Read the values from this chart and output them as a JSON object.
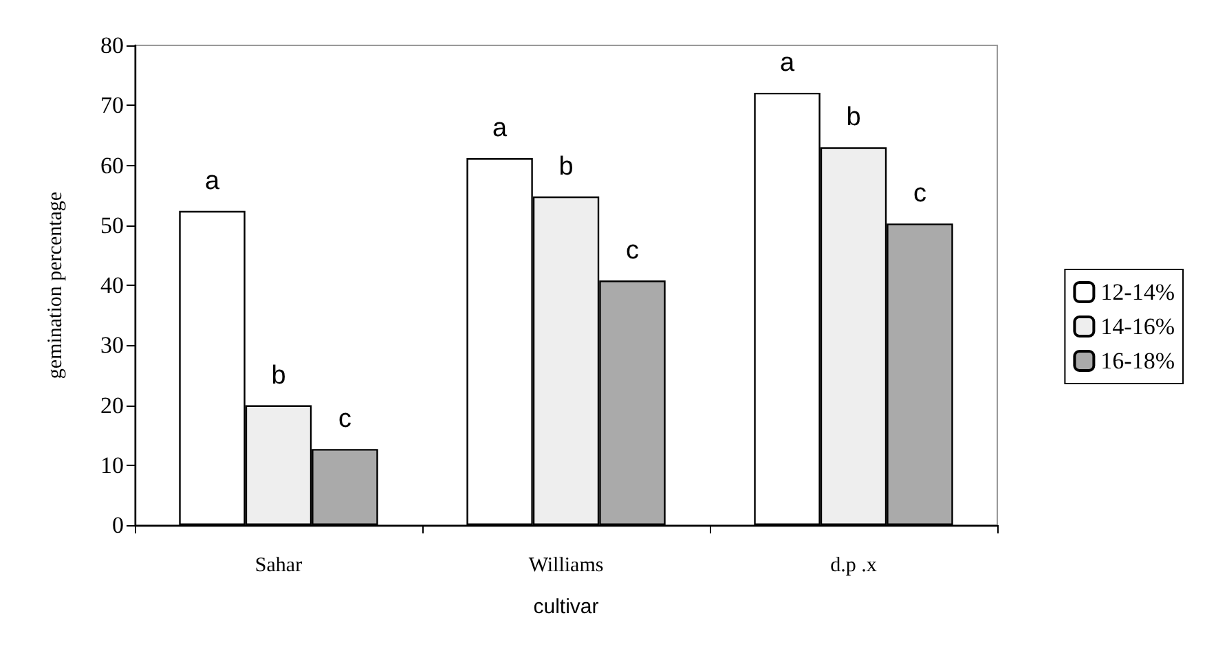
{
  "chart_data": {
    "type": "bar",
    "xlabel": "cultivar",
    "ylabel": "gemination percentage",
    "categories": [
      "Sahar",
      "Williams",
      "d.p .x"
    ],
    "series": [
      {
        "name": "12-14%",
        "color": "#ffffff",
        "values": [
          52.4,
          61.2,
          72.1
        ],
        "value_labels": [
          "a",
          "a",
          "a"
        ]
      },
      {
        "name": "14-16%",
        "color": "#eeeeee",
        "values": [
          20.0,
          54.8,
          63.0
        ],
        "value_labels": [
          "b",
          "b",
          "b"
        ]
      },
      {
        "name": "16-18%",
        "color": "#aaaaaa",
        "values": [
          12.7,
          40.8,
          50.3
        ],
        "value_labels": [
          "c",
          "c",
          "c"
        ]
      }
    ],
    "ylim": [
      0,
      80
    ],
    "yticks": [
      0,
      10,
      20,
      30,
      40,
      50,
      60,
      70,
      80
    ],
    "grid": false,
    "legend": "right"
  }
}
